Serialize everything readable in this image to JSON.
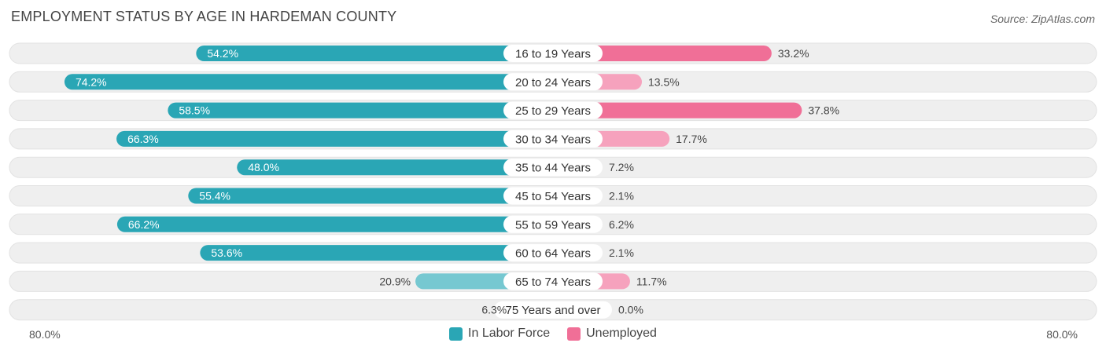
{
  "header": {
    "title": "EMPLOYMENT STATUS BY AGE IN HARDEMAN COUNTY",
    "source": "Source: ZipAtlas.com"
  },
  "axis": {
    "left_label": "80.0%",
    "right_label": "80.0%"
  },
  "legend": {
    "labor_label": "In Labor Force",
    "unemployed_label": "Unemployed"
  },
  "colors": {
    "labor_strong": "#2aa6b5",
    "labor_light": "#76c8d1",
    "unemployed_strong": "#f06f97",
    "unemployed_light": "#f6a2bd",
    "track": "#efefef"
  },
  "chart_data": {
    "type": "bar",
    "orientation": "diverging-horizontal",
    "title": "EMPLOYMENT STATUS BY AGE IN HARDEMAN COUNTY",
    "categories": [
      "16 to 19 Years",
      "20 to 24 Years",
      "25 to 29 Years",
      "30 to 34 Years",
      "35 to 44 Years",
      "45 to 54 Years",
      "55 to 59 Years",
      "60 to 64 Years",
      "65 to 74 Years",
      "75 Years and over"
    ],
    "series": [
      {
        "name": "In Labor Force",
        "values": [
          54.2,
          74.2,
          58.5,
          66.3,
          48.0,
          55.4,
          66.2,
          53.6,
          20.9,
          6.3
        ]
      },
      {
        "name": "Unemployed",
        "values": [
          33.2,
          13.5,
          37.8,
          17.7,
          7.2,
          2.1,
          6.2,
          2.1,
          11.7,
          0.0
        ]
      }
    ],
    "xlim": [
      -80,
      80
    ],
    "value_suffix": "%"
  }
}
